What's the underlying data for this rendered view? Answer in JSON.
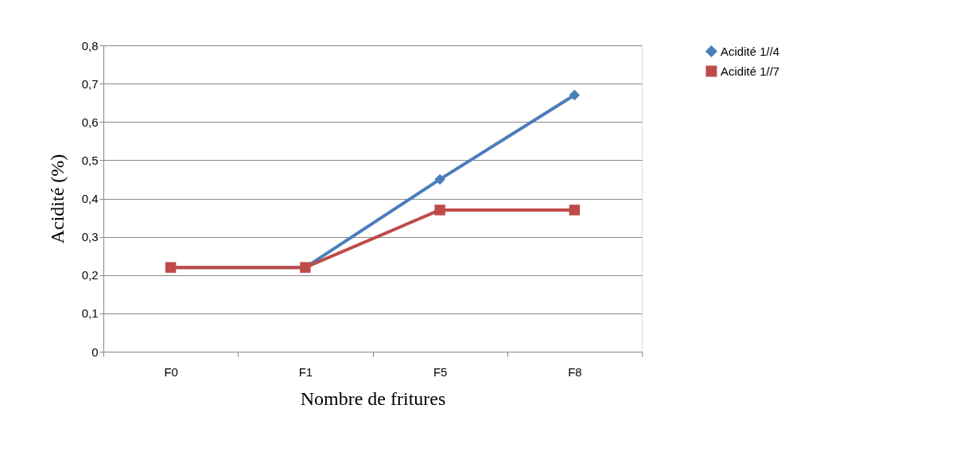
{
  "chart_data": {
    "type": "line",
    "xlabel": "Nombre de fritures",
    "ylabel": "Acidité (%)",
    "categories": [
      "F0",
      "F1",
      "F5",
      "F8"
    ],
    "series": [
      {
        "name": "Acidité 1//4",
        "color": "#4a7ebb",
        "marker": "diamond",
        "values": [
          0.22,
          0.22,
          0.45,
          0.67
        ]
      },
      {
        "name": "Acidité 1//7",
        "color": "#be4b48",
        "marker": "square",
        "values": [
          0.22,
          0.22,
          0.37,
          0.37
        ]
      }
    ],
    "ylim": [
      0,
      0.8
    ],
    "yticks": [
      0,
      {
        "value": 0.1,
        "label": "0,1"
      },
      {
        "value": 0.2,
        "label": "0,2"
      },
      {
        "value": 0.3,
        "label": "0,3"
      },
      {
        "value": 0.4,
        "label": "0,4"
      },
      {
        "value": 0.5,
        "label": "0,5"
      },
      {
        "value": 0.6,
        "label": "0,6"
      },
      {
        "value": 0.7,
        "label": "0,7"
      },
      {
        "value": 0.8,
        "label": "0,8"
      }
    ],
    "grid": "y",
    "legend": "right",
    "line_style": "solid"
  }
}
